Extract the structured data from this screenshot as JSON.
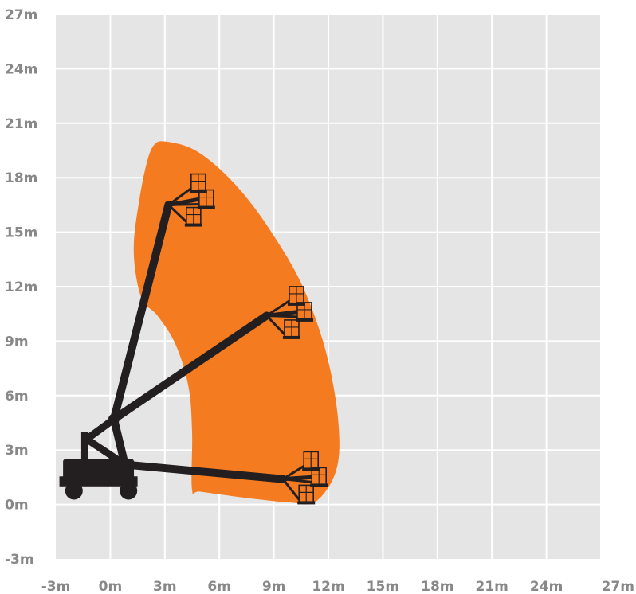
{
  "chart_data": {
    "type": "working-envelope",
    "x_ticks": [
      "-3m",
      "0m",
      "3m",
      "6m",
      "9m",
      "12m",
      "15m",
      "18m",
      "21m",
      "24m",
      "27m"
    ],
    "y_ticks": [
      "27m",
      "24m",
      "21m",
      "18m",
      "15m",
      "12m",
      "9m",
      "6m",
      "3m",
      "0m",
      "-3m"
    ],
    "x_tick_values": [
      -3,
      0,
      3,
      6,
      9,
      12,
      15,
      18,
      21,
      24,
      27
    ],
    "y_tick_values": [
      27,
      24,
      21,
      18,
      15,
      12,
      9,
      6,
      3,
      0,
      -3
    ],
    "xlim": [
      -3,
      27
    ],
    "ylim": [
      -3,
      27
    ],
    "grid": true,
    "colors": {
      "background": "#e5e5e5",
      "grid": "#ffffff",
      "envelope": "#f47b20",
      "machine": "#231f20",
      "tick_text": "#888888"
    },
    "envelope_outline": [
      [
        2.0,
        18.8
      ],
      [
        2.4,
        19.8
      ],
      [
        3.0,
        20.0
      ],
      [
        4.5,
        19.6
      ],
      [
        6.0,
        18.5
      ],
      [
        7.5,
        16.9
      ],
      [
        9.0,
        14.8
      ],
      [
        10.5,
        12.2
      ],
      [
        11.7,
        9.0
      ],
      [
        12.4,
        5.8
      ],
      [
        12.6,
        3.0
      ],
      [
        12.2,
        1.3
      ],
      [
        11.2,
        0.1
      ],
      [
        10.0,
        0.1
      ],
      [
        8.0,
        0.3
      ],
      [
        5.0,
        0.7
      ],
      [
        4.5,
        0.8
      ],
      [
        4.5,
        4.0
      ],
      [
        4.3,
        6.5
      ],
      [
        3.6,
        8.8
      ],
      [
        2.6,
        10.4
      ],
      [
        1.8,
        11.2
      ],
      [
        1.4,
        12.7
      ],
      [
        1.3,
        14.5
      ],
      [
        1.6,
        16.8
      ]
    ],
    "boom_positions": [
      {
        "pivot": [
          -1.3,
          3.6
        ],
        "knuckle": [
          0.2,
          4.7
        ],
        "elbow": [
          3.2,
          16.5
        ],
        "platform": [
          4.8,
          16.8
        ]
      },
      {
        "pivot": [
          -1.3,
          3.6
        ],
        "knuckle": [
          0.2,
          4.7
        ],
        "elbow": [
          8.6,
          10.4
        ],
        "platform": [
          10.2,
          10.6
        ]
      },
      {
        "pivot": [
          -1.3,
          3.6
        ],
        "knuckle": [
          0.8,
          2.2
        ],
        "elbow": [
          9.5,
          1.4
        ],
        "platform": [
          11.0,
          1.5
        ]
      }
    ]
  }
}
